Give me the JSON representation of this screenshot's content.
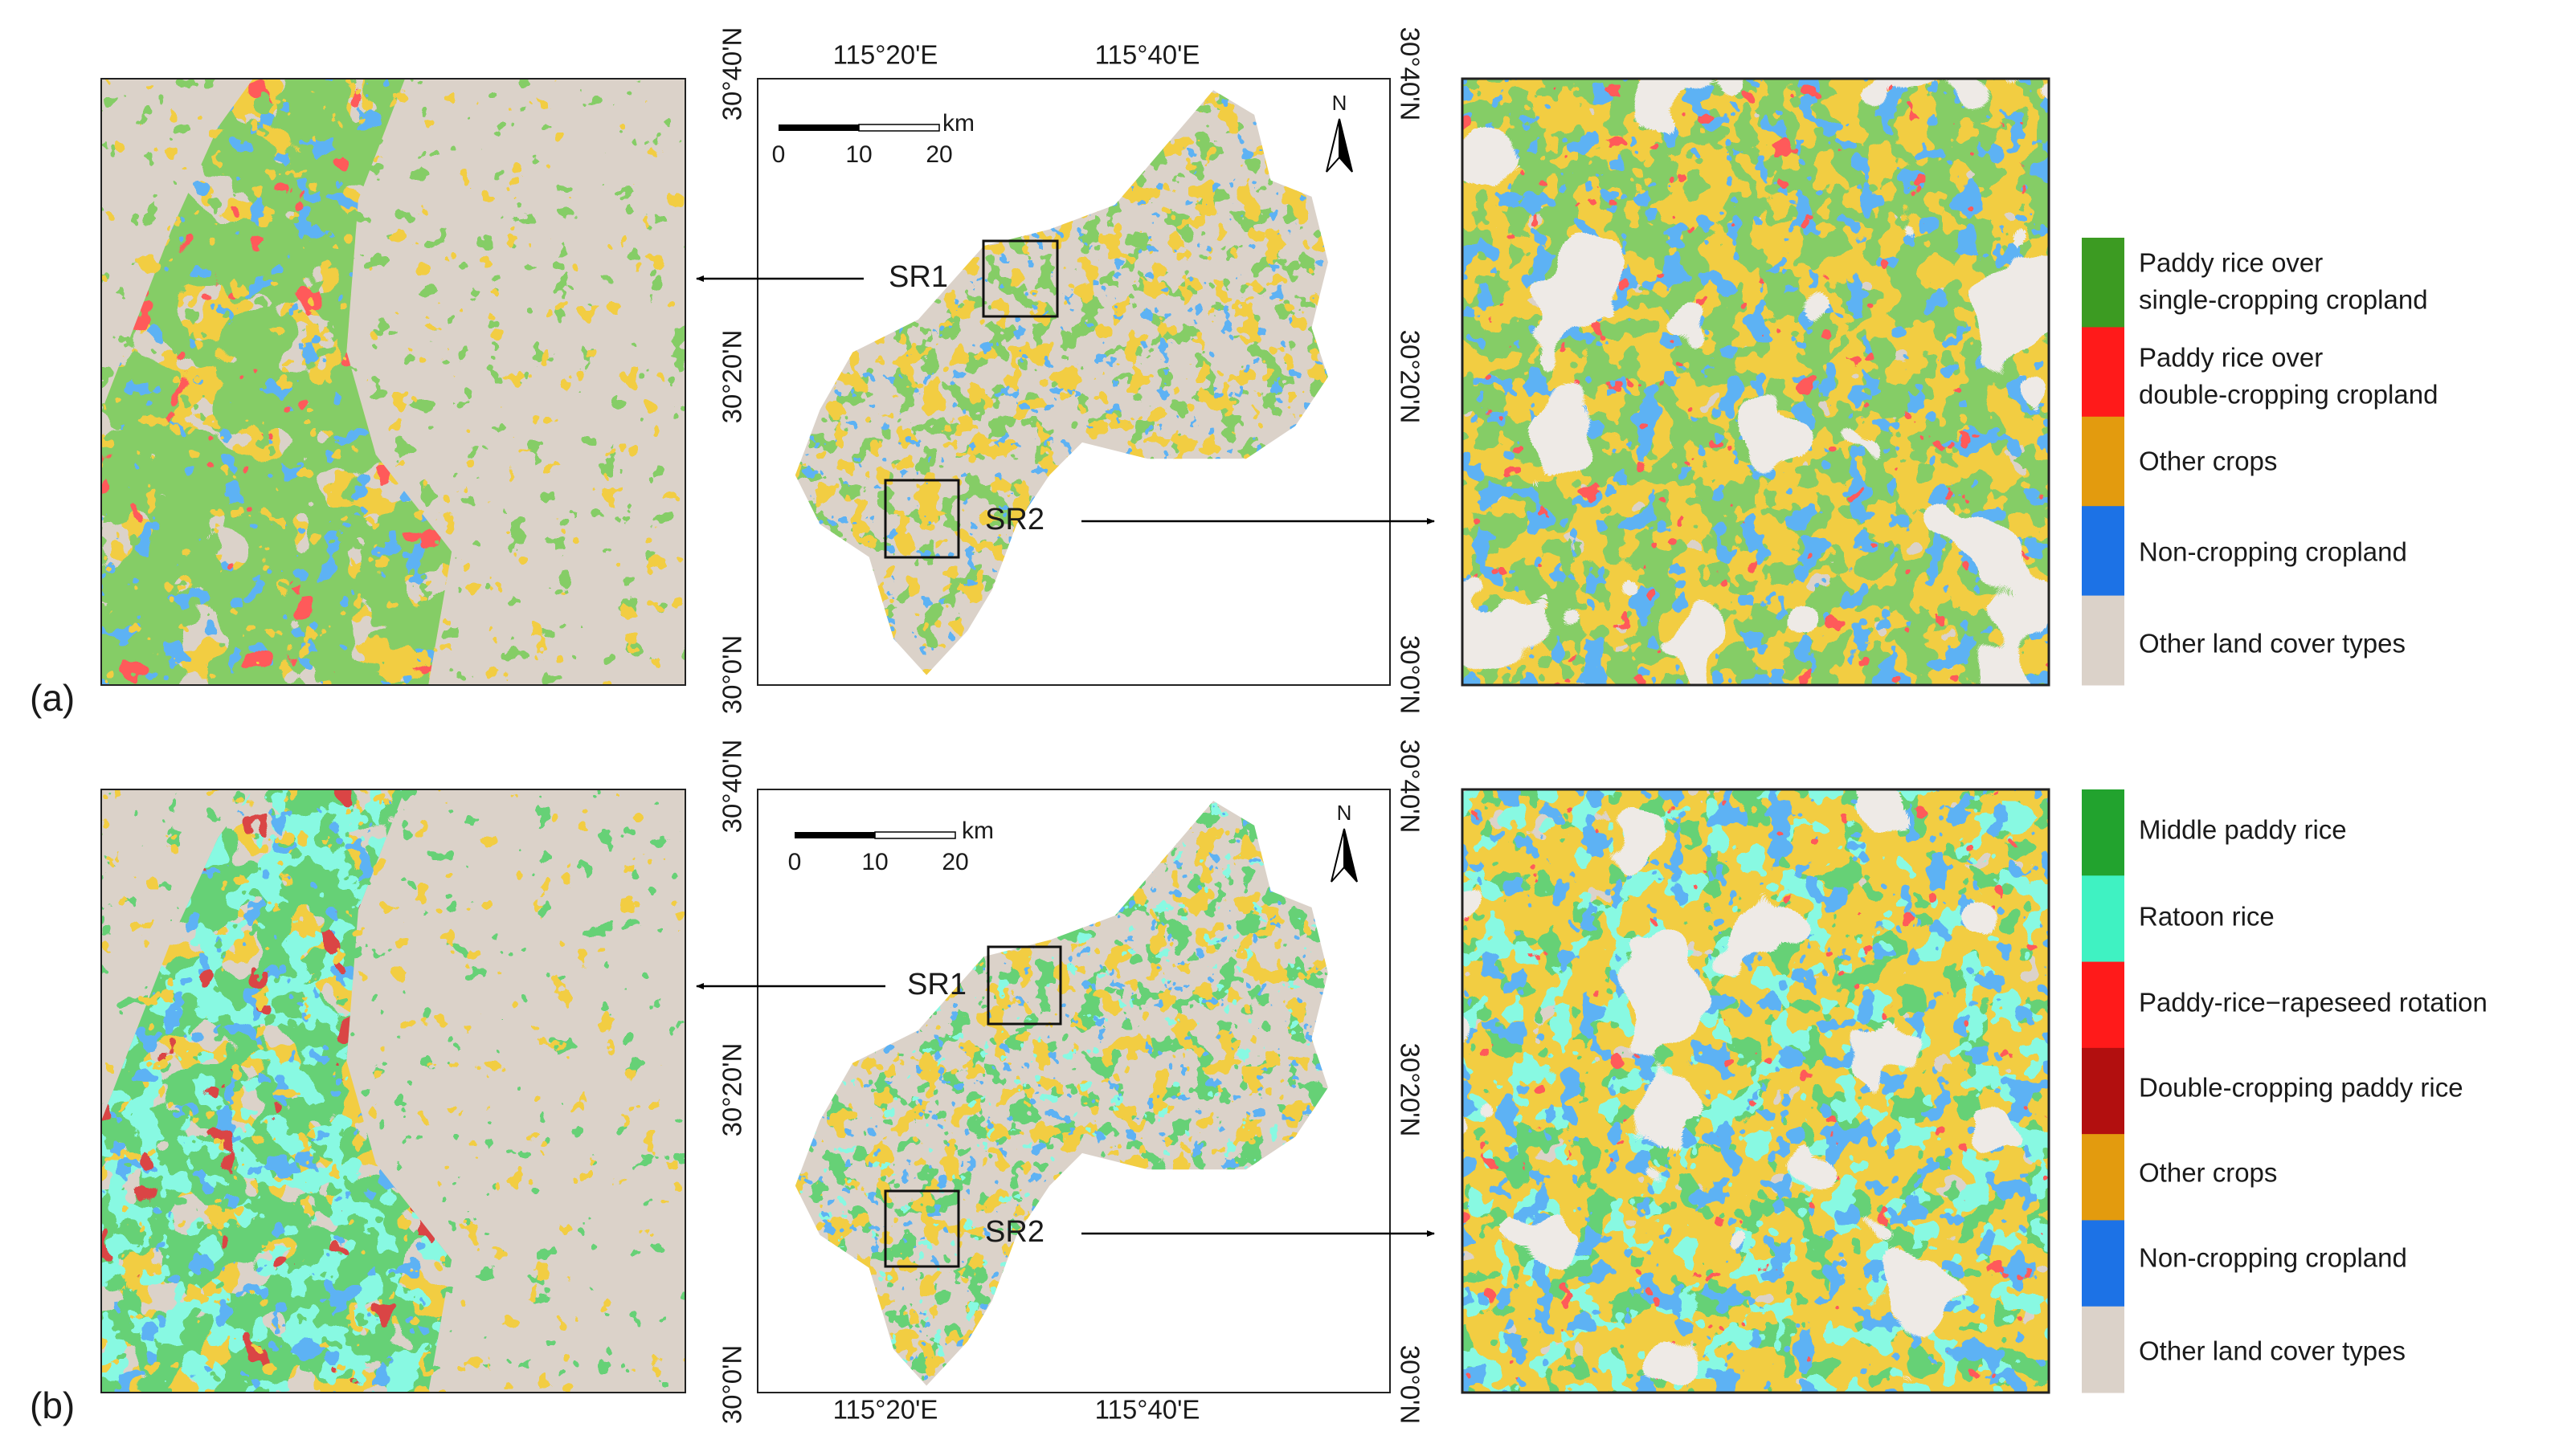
{
  "panels": [
    {
      "label": "(a)",
      "lon_labels": [
        "115°20'E",
        "115°40'E"
      ],
      "lat_labels_left": [
        "30°40'N",
        "30°20'N",
        "30°0'N"
      ],
      "lat_labels_right": [
        "30°40'N",
        "30°20'N",
        "30°0'N"
      ],
      "scale_bar": {
        "ticks": [
          "0",
          "10",
          "20"
        ],
        "unit": "km"
      },
      "north": "N",
      "subregions": [
        "SR1",
        "SR2"
      ],
      "legend": [
        {
          "lines": [
            "Paddy rice over",
            "single-cropping cropland"
          ],
          "color": "#3c9b22"
        },
        {
          "lines": [
            "Paddy rice over",
            "double-cropping cropland"
          ],
          "color": "#ff1a1a"
        },
        {
          "lines": [
            "Other crops"
          ],
          "color": "#e39b0e"
        },
        {
          "lines": [
            "Non-cropping cropland"
          ],
          "color": "#1c72e6"
        },
        {
          "lines": [
            "Other land cover types"
          ],
          "color": "#dbd2c9"
        }
      ]
    },
    {
      "label": "(b)",
      "lon_labels": [
        "115°20'E",
        "115°40'E"
      ],
      "lat_labels_left": [
        "30°40'N",
        "30°20'N",
        "30°0'N"
      ],
      "lat_labels_right": [
        "30°40'N",
        "30°20'N",
        "30°0'N"
      ],
      "scale_bar": {
        "ticks": [
          "0",
          "10",
          "20"
        ],
        "unit": "km"
      },
      "north": "N",
      "subregions": [
        "SR1",
        "SR2"
      ],
      "legend": [
        {
          "lines": [
            "Middle paddy rice"
          ],
          "color": "#22a32e"
        },
        {
          "lines": [
            "Ratoon rice"
          ],
          "color": "#3ff2c2"
        },
        {
          "lines": [
            "Paddy-rice−rapeseed rotation"
          ],
          "color": "#ff1a1a"
        },
        {
          "lines": [
            "Double-cropping paddy rice"
          ],
          "color": "#b20f0f"
        },
        {
          "lines": [
            "Other crops"
          ],
          "color": "#e39b0e"
        },
        {
          "lines": [
            "Non-cropping cropland"
          ],
          "color": "#1c72e6"
        },
        {
          "lines": [
            "Other land cover types"
          ],
          "color": "#dbd2c9"
        }
      ]
    }
  ]
}
